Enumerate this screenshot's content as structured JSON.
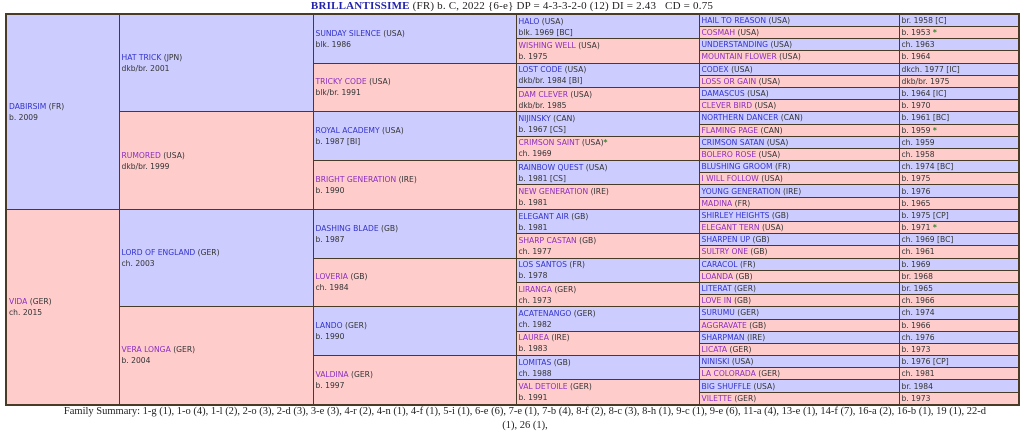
{
  "header": {
    "horse_name": "BRILLANTISSIME",
    "details": " (FR) b. C, 2022 {6-e} DP = 4-3-3-2-0 (12) DI = 2.43   CD = 0.75"
  },
  "colors": {
    "sire_cell": "#ccccff",
    "dam_cell": "#ffcccc",
    "male_link": "#3333cc",
    "female_link": "#8a2fc0",
    "star": "#2a8a2a"
  },
  "pedigree": {
    "gen1": [
      {
        "name": "DABIRSIM",
        "country": "(FR)",
        "info": "b. 2009"
      },
      {
        "name": "VIDA",
        "country": "(GER)",
        "info": "ch. 2015"
      }
    ],
    "gen2": [
      {
        "name": "HAT TRICK",
        "country": "(JPN)",
        "info": "dkb/br. 2001"
      },
      {
        "name": "RUMORED",
        "country": "(USA)",
        "info": "dkb/br. 1999"
      },
      {
        "name": "LORD OF ENGLAND",
        "country": "(GER)",
        "info": "ch. 2003"
      },
      {
        "name": "VERA LONGA",
        "country": "(GER)",
        "info": "b. 2004"
      }
    ],
    "gen3": [
      {
        "name": "SUNDAY SILENCE",
        "country": "(USA)",
        "info": "blk. 1986"
      },
      {
        "name": "TRICKY CODE",
        "country": "(USA)",
        "info": "blk/br. 1991"
      },
      {
        "name": "ROYAL ACADEMY",
        "country": "(USA)",
        "info": "b. 1987 [BI]"
      },
      {
        "name": "BRIGHT GENERATION",
        "country": "(IRE)",
        "info": "b. 1990"
      },
      {
        "name": "DASHING BLADE",
        "country": "(GB)",
        "info": "b. 1987"
      },
      {
        "name": "LOVERIA",
        "country": "(GB)",
        "info": "ch. 1984"
      },
      {
        "name": "LANDO",
        "country": "(GER)",
        "info": "b. 1990"
      },
      {
        "name": "VALDINA",
        "country": "(GER)",
        "info": "b. 1997"
      }
    ],
    "gen4": [
      {
        "name": "HALO",
        "country": "(USA)",
        "info": "blk. 1969 [BC]"
      },
      {
        "name": "WISHING WELL",
        "country": "(USA)",
        "info": "b. 1975"
      },
      {
        "name": "LOST CODE",
        "country": "(USA)",
        "info": "dkb/br. 1984 [BI]"
      },
      {
        "name": "DAM CLEVER",
        "country": "(USA)",
        "info": "dkb/br. 1985"
      },
      {
        "name": "NIJINSKY",
        "country": "(CAN)",
        "info": "b. 1967 [CS]"
      },
      {
        "name": "CRIMSON SAINT",
        "country": "(USA)",
        "info": "ch. 1969",
        "star": "*"
      },
      {
        "name": "RAINBOW QUEST",
        "country": "(USA)",
        "info": "b. 1981 [CS]"
      },
      {
        "name": "NEW GENERATION",
        "country": "(IRE)",
        "info": "b. 1981"
      },
      {
        "name": "ELEGANT AIR",
        "country": "(GB)",
        "info": "b. 1981"
      },
      {
        "name": "SHARP CASTAN",
        "country": "(GB)",
        "info": "ch. 1977"
      },
      {
        "name": "LOS SANTOS",
        "country": "(FR)",
        "info": "b. 1978"
      },
      {
        "name": "LIRANGA",
        "country": "(GER)",
        "info": "ch. 1973"
      },
      {
        "name": "ACATENANGO",
        "country": "(GER)",
        "info": "ch. 1982"
      },
      {
        "name": "LAUREA",
        "country": "(IRE)",
        "info": "b. 1983"
      },
      {
        "name": "LOMITAS",
        "country": "(GB)",
        "info": "ch. 1988"
      },
      {
        "name": "VAL DETOILE",
        "country": "(GER)",
        "info": "b. 1991"
      }
    ],
    "gen5": [
      {
        "name": "HAIL TO REASON",
        "country": "(USA)",
        "info": "br. 1958 [C]"
      },
      {
        "name": "COSMAH",
        "country": "(USA)",
        "info": "b. 1953",
        "star": "*"
      },
      {
        "name": "UNDERSTANDING",
        "country": "(USA)",
        "info": "ch. 1963"
      },
      {
        "name": "MOUNTAIN FLOWER",
        "country": "(USA)",
        "info": "b. 1964"
      },
      {
        "name": "CODEX",
        "country": "(USA)",
        "info": "dkch. 1977 [IC]"
      },
      {
        "name": "LOSS OR GAIN",
        "country": "(USA)",
        "info": "dkb/br. 1975"
      },
      {
        "name": "DAMASCUS",
        "country": "(USA)",
        "info": "b. 1964 [IC]"
      },
      {
        "name": "CLEVER BIRD",
        "country": "(USA)",
        "info": "b. 1970"
      },
      {
        "name": "NORTHERN DANCER",
        "country": "(CAN)",
        "info": "b. 1961 [BC]"
      },
      {
        "name": "FLAMING PAGE",
        "country": "(CAN)",
        "info": "b. 1959",
        "star": "*"
      },
      {
        "name": "CRIMSON SATAN",
        "country": "(USA)",
        "info": "ch. 1959"
      },
      {
        "name": "BOLERO ROSE",
        "country": "(USA)",
        "info": "ch. 1958"
      },
      {
        "name": "BLUSHING GROOM",
        "country": "(FR)",
        "info": "ch. 1974 [BC]"
      },
      {
        "name": "I WILL FOLLOW",
        "country": "(USA)",
        "info": "b. 1975"
      },
      {
        "name": "YOUNG GENERATION",
        "country": "(IRE)",
        "info": "b. 1976"
      },
      {
        "name": "MADINA",
        "country": "(FR)",
        "info": "b. 1965"
      },
      {
        "name": "SHIRLEY HEIGHTS",
        "country": "(GB)",
        "info": "b. 1975 [CP]"
      },
      {
        "name": "ELEGANT TERN",
        "country": "(USA)",
        "info": "b. 1971",
        "star": "*"
      },
      {
        "name": "SHARPEN UP",
        "country": "(GB)",
        "info": "ch. 1969 [BC]"
      },
      {
        "name": "SULTRY ONE",
        "country": "(GB)",
        "info": "ch. 1961"
      },
      {
        "name": "CARACOL",
        "country": "(FR)",
        "info": "b. 1969"
      },
      {
        "name": "LOANDA",
        "country": "(GB)",
        "info": "br. 1968"
      },
      {
        "name": "LITERAT",
        "country": "(GER)",
        "info": "br. 1965"
      },
      {
        "name": "LOVE IN",
        "country": "(GB)",
        "info": "ch. 1966"
      },
      {
        "name": "SURUMU",
        "country": "(GER)",
        "info": "ch. 1974"
      },
      {
        "name": "AGGRAVATE",
        "country": "(GB)",
        "info": "b. 1966"
      },
      {
        "name": "SHARPMAN",
        "country": "(IRE)",
        "info": "ch. 1976"
      },
      {
        "name": "LICATA",
        "country": "(GER)",
        "info": "b. 1973"
      },
      {
        "name": "NINISKI",
        "country": "(USA)",
        "info": "b. 1976 [CP]"
      },
      {
        "name": "LA COLORADA",
        "country": "(GER)",
        "info": "ch. 1981"
      },
      {
        "name": "BIG SHUFFLE",
        "country": "(USA)",
        "info": "br. 1984"
      },
      {
        "name": "VILETTE",
        "country": "(GER)",
        "info": "b. 1973"
      }
    ]
  },
  "family_summary": "Family Summary: 1-g (1), 1-o (4), 1-l (2), 2-o (3), 2-d (3), 3-e (3), 4-r (2), 4-n (1), 4-f (1), 5-i (1), 6-e (6), 7-e (1), 7-b (4), 8-f (2), 8-c (3), 8-h (1), 9-c (1), 9-e (6), 11-a (4), 13-e (1), 14-f (7), 16-a (2), 16-b (1), 19 (1), 22-d (1), 26 (1),"
}
